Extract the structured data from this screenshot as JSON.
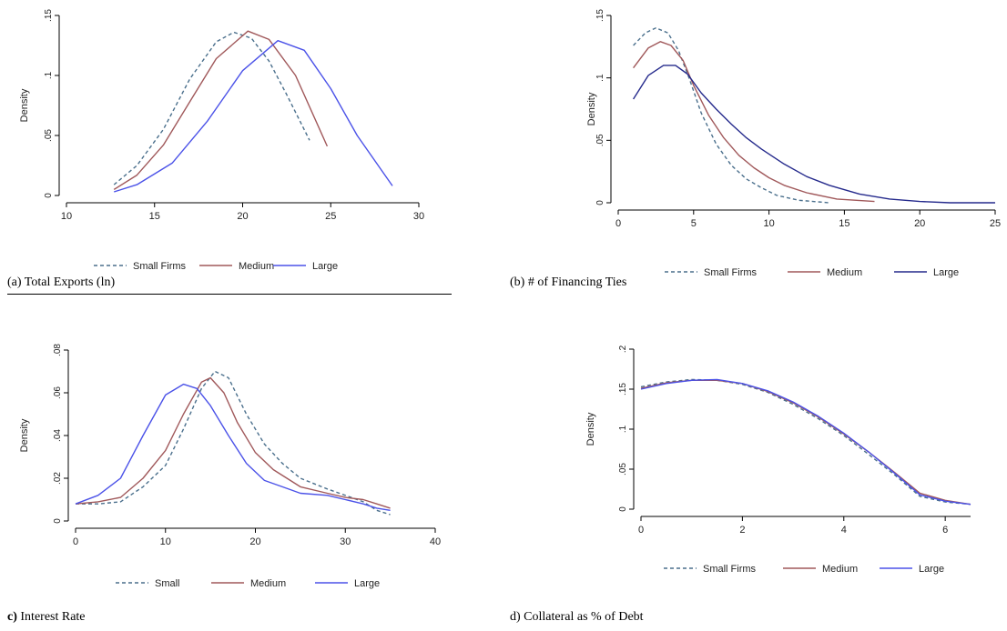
{
  "panels": {
    "a": {
      "caption": "(a) Total Exports (ln)"
    },
    "b": {
      "caption": "(b) # of Financing Ties"
    },
    "c": {
      "caption_bold": "c)",
      "caption_rest": " Interest Rate"
    },
    "d": {
      "caption": "d) Collateral as % of Debt"
    }
  },
  "colors": {
    "small": "#4a6f8c",
    "medium": "#a0585a",
    "large": "#4b52e8",
    "large_b": "#252a8c"
  },
  "chart_data": [
    {
      "type": "line",
      "panel": "a",
      "ylabel": "Density",
      "xlim": [
        10,
        30
      ],
      "ylim": [
        0,
        0.15
      ],
      "xticks": [
        10,
        15,
        20,
        25,
        30
      ],
      "yticks": [
        {
          "v": 0,
          "label": "0"
        },
        {
          "v": 0.05,
          "label": ".05"
        },
        {
          "v": 0.1,
          "label": ".1"
        },
        {
          "v": 0.15,
          "label": ".15"
        }
      ],
      "legend": "bottom",
      "series": [
        {
          "name": "Small Firms",
          "dash": true,
          "x": [
            12.7,
            14,
            15.5,
            17,
            18.5,
            19.5,
            20.5,
            21.5,
            22.5,
            23.8
          ],
          "y": [
            0.009,
            0.025,
            0.055,
            0.097,
            0.128,
            0.136,
            0.131,
            0.112,
            0.084,
            0.046
          ]
        },
        {
          "name": "Medium",
          "dash": false,
          "x": [
            12.7,
            14,
            15.5,
            17,
            18.5,
            20.3,
            21.5,
            23,
            24.8
          ],
          "y": [
            0.005,
            0.017,
            0.042,
            0.078,
            0.114,
            0.137,
            0.13,
            0.1,
            0.041
          ]
        },
        {
          "name": "Large",
          "dash": false,
          "x": [
            12.7,
            14,
            16,
            18,
            20,
            22,
            23.5,
            25,
            26.5,
            28.5
          ],
          "y": [
            0.003,
            0.009,
            0.027,
            0.062,
            0.104,
            0.129,
            0.121,
            0.089,
            0.05,
            0.008
          ]
        }
      ]
    },
    {
      "type": "line",
      "panel": "b",
      "ylabel": "Density",
      "xlim": [
        0,
        25
      ],
      "ylim": [
        0,
        0.15
      ],
      "xticks": [
        0,
        5,
        10,
        15,
        20,
        25
      ],
      "yticks": [
        {
          "v": 0,
          "label": "0"
        },
        {
          "v": 0.05,
          "label": ".05"
        },
        {
          "v": 0.1,
          "label": ".1"
        },
        {
          "v": 0.15,
          "label": ".15"
        }
      ],
      "legend": "bottom",
      "series": [
        {
          "name": "Small Firms",
          "dash": true,
          "x": [
            1,
            1.8,
            2.5,
            3.3,
            4,
            4.7,
            5.5,
            6.5,
            7.5,
            8.5,
            9.5,
            10.5,
            12,
            14
          ],
          "y": [
            0.126,
            0.136,
            0.14,
            0.136,
            0.122,
            0.1,
            0.072,
            0.047,
            0.03,
            0.019,
            0.012,
            0.006,
            0.002,
            0
          ]
        },
        {
          "name": "Medium",
          "dash": false,
          "x": [
            1,
            2,
            2.8,
            3.5,
            4.3,
            5,
            6,
            7,
            8,
            9,
            10,
            11,
            12.5,
            14.5,
            17
          ],
          "y": [
            0.108,
            0.124,
            0.129,
            0.126,
            0.114,
            0.094,
            0.07,
            0.052,
            0.038,
            0.028,
            0.02,
            0.014,
            0.008,
            0.003,
            0.001
          ]
        },
        {
          "name": "Large",
          "dash": false,
          "x": [
            1,
            2,
            3,
            3.8,
            4.6,
            5.5,
            6.5,
            7.5,
            8.5,
            9.5,
            11,
            12.5,
            14,
            16,
            18,
            20,
            22,
            25
          ],
          "y": [
            0.083,
            0.102,
            0.11,
            0.11,
            0.103,
            0.088,
            0.075,
            0.063,
            0.052,
            0.043,
            0.031,
            0.021,
            0.014,
            0.007,
            0.003,
            0.001,
            0,
            0
          ]
        }
      ]
    },
    {
      "type": "line",
      "panel": "c",
      "ylabel": "Density",
      "xlim": [
        0,
        40
      ],
      "ylim": [
        0,
        0.08
      ],
      "xticks": [
        0,
        10,
        20,
        30,
        40
      ],
      "yticks": [
        {
          "v": 0,
          "label": "0"
        },
        {
          "v": 0.02,
          "label": ".02"
        },
        {
          "v": 0.04,
          "label": ".04"
        },
        {
          "v": 0.06,
          "label": ".06"
        },
        {
          "v": 0.08,
          "label": ".08"
        }
      ],
      "legend": "bottom",
      "series": [
        {
          "name": "Small",
          "dash": true,
          "x": [
            0,
            2.5,
            5,
            7.5,
            10,
            12,
            14,
            15.5,
            17,
            19,
            21,
            23,
            25,
            28,
            30,
            32,
            33.5,
            35
          ],
          "y": [
            0.008,
            0.008,
            0.009,
            0.016,
            0.026,
            0.043,
            0.062,
            0.07,
            0.067,
            0.05,
            0.036,
            0.027,
            0.02,
            0.015,
            0.012,
            0.009,
            0.005,
            0.003
          ]
        },
        {
          "name": "Medium",
          "dash": false,
          "x": [
            0,
            2.5,
            5,
            7.5,
            10,
            12,
            14,
            15,
            16.5,
            18,
            20,
            22,
            25,
            28,
            30,
            32,
            33.5,
            35
          ],
          "y": [
            0.008,
            0.009,
            0.011,
            0.02,
            0.033,
            0.05,
            0.065,
            0.067,
            0.06,
            0.046,
            0.032,
            0.024,
            0.016,
            0.013,
            0.011,
            0.01,
            0.008,
            0.006
          ]
        },
        {
          "name": "Large",
          "dash": false,
          "x": [
            0,
            2.5,
            5,
            7.5,
            10,
            12,
            13.5,
            15,
            17,
            19,
            21,
            23,
            25,
            28,
            30,
            32,
            33.5,
            35
          ],
          "y": [
            0.008,
            0.012,
            0.02,
            0.04,
            0.059,
            0.064,
            0.062,
            0.054,
            0.04,
            0.027,
            0.019,
            0.016,
            0.013,
            0.012,
            0.01,
            0.008,
            0.006,
            0.005
          ]
        }
      ]
    },
    {
      "type": "line",
      "panel": "d",
      "ylabel": "Density",
      "xlim": [
        0,
        6.5
      ],
      "ylim": [
        0,
        0.2
      ],
      "xticks": [
        0,
        2,
        4,
        6
      ],
      "yticks": [
        {
          "v": 0,
          "label": "0"
        },
        {
          "v": 0.05,
          "label": ".05"
        },
        {
          "v": 0.1,
          "label": ".1"
        },
        {
          "v": 0.15,
          "label": ".15"
        },
        {
          "v": 0.2,
          "label": ".2"
        }
      ],
      "legend": "bottom",
      "series": [
        {
          "name": "Small Firms",
          "dash": true,
          "x": [
            0,
            0.5,
            1,
            1.5,
            2,
            2.5,
            3,
            3.5,
            4,
            4.5,
            5,
            5.5,
            6,
            6.5
          ],
          "y": [
            0.153,
            0.159,
            0.162,
            0.161,
            0.156,
            0.146,
            0.131,
            0.113,
            0.092,
            0.068,
            0.043,
            0.016,
            0.009,
            0.006
          ]
        },
        {
          "name": "Medium",
          "dash": false,
          "x": [
            0,
            0.5,
            1,
            1.5,
            2,
            2.5,
            3,
            3.5,
            4,
            4.5,
            5,
            5.5,
            6,
            6.5
          ],
          "y": [
            0.151,
            0.158,
            0.161,
            0.161,
            0.157,
            0.147,
            0.133,
            0.115,
            0.094,
            0.071,
            0.046,
            0.02,
            0.011,
            0.006
          ]
        },
        {
          "name": "Large",
          "dash": false,
          "x": [
            0,
            0.5,
            1,
            1.5,
            2,
            2.5,
            3,
            3.5,
            4,
            4.5,
            5,
            5.5,
            6,
            6.5
          ],
          "y": [
            0.15,
            0.157,
            0.161,
            0.162,
            0.157,
            0.148,
            0.134,
            0.116,
            0.095,
            0.071,
            0.045,
            0.018,
            0.01,
            0.006
          ]
        }
      ]
    }
  ]
}
